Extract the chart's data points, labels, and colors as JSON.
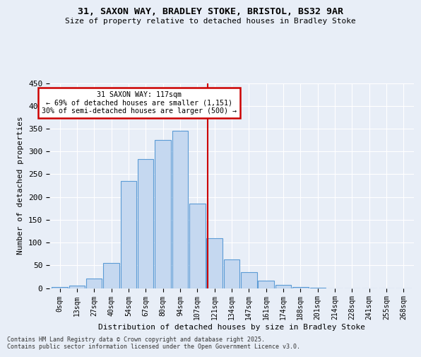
{
  "title_line1": "31, SAXON WAY, BRADLEY STOKE, BRISTOL, BS32 9AR",
  "title_line2": "Size of property relative to detached houses in Bradley Stoke",
  "xlabel": "Distribution of detached houses by size in Bradley Stoke",
  "ylabel": "Number of detached properties",
  "bar_labels": [
    "0sqm",
    "13sqm",
    "27sqm",
    "40sqm",
    "54sqm",
    "67sqm",
    "80sqm",
    "94sqm",
    "107sqm",
    "121sqm",
    "134sqm",
    "147sqm",
    "161sqm",
    "174sqm",
    "188sqm",
    "201sqm",
    "214sqm",
    "228sqm",
    "241sqm",
    "255sqm",
    "268sqm"
  ],
  "bar_values": [
    2,
    6,
    21,
    55,
    235,
    283,
    325,
    345,
    185,
    110,
    63,
    35,
    17,
    7,
    2,
    1,
    0,
    0,
    0,
    0,
    0
  ],
  "bar_color": "#c5d8f0",
  "bar_edgecolor": "#5b9bd5",
  "bg_color": "#e8eef7",
  "grid_color": "#ffffff",
  "property_size": 117,
  "vline_x_index": 8.62,
  "annotation_text": "31 SAXON WAY: 117sqm\n← 69% of detached houses are smaller (1,151)\n30% of semi-detached houses are larger (500) →",
  "annotation_box_color": "#ffffff",
  "annotation_box_edgecolor": "#cc0000",
  "vline_color": "#cc0000",
  "footer_text": "Contains HM Land Registry data © Crown copyright and database right 2025.\nContains public sector information licensed under the Open Government Licence v3.0.",
  "ylim": [
    0,
    450
  ],
  "yticks": [
    0,
    50,
    100,
    150,
    200,
    250,
    300,
    350,
    400,
    450
  ]
}
